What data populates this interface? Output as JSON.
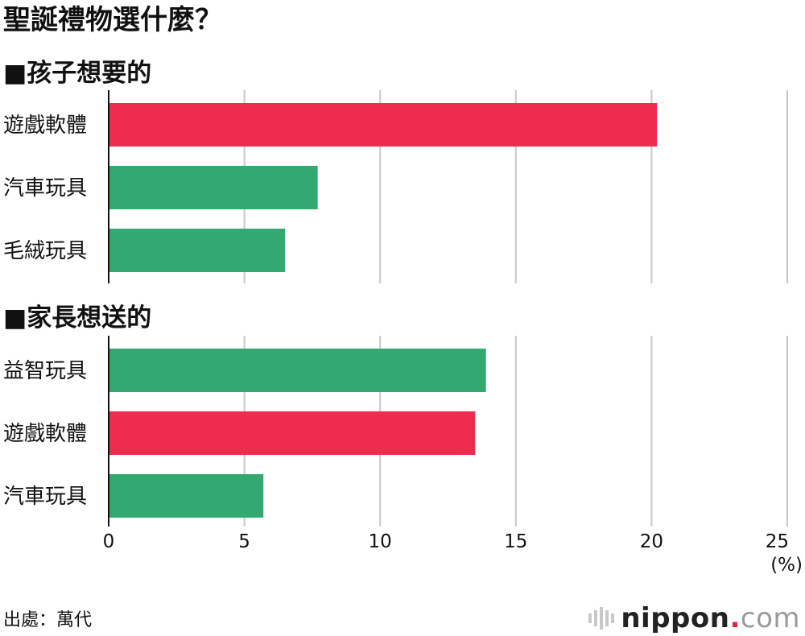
{
  "title": "聖誕禮物選什麼？",
  "chart_data": [
    {
      "type": "bar",
      "orientation": "horizontal",
      "title": "■孩子想要的",
      "categories": [
        "遊戲軟體",
        "汽車玩具",
        "毛絨玩具"
      ],
      "values": [
        20.2,
        7.7,
        6.5
      ],
      "colors": [
        "#f02b50",
        "#33a870",
        "#33a870"
      ],
      "xlim": [
        0,
        25
      ],
      "grid": true
    },
    {
      "type": "bar",
      "orientation": "horizontal",
      "title": "■家長想送的",
      "categories": [
        "益智玩具",
        "遊戲軟體",
        "汽車玩具"
      ],
      "values": [
        13.9,
        13.5,
        5.7
      ],
      "colors": [
        "#33a870",
        "#f02b50",
        "#33a870"
      ],
      "xlim": [
        0,
        25
      ],
      "grid": true
    }
  ],
  "axis": {
    "ticks": [
      "0",
      "5",
      "10",
      "15",
      "20",
      "25"
    ],
    "tick_values": [
      0,
      5,
      10,
      15,
      20,
      25
    ],
    "unit": "(%)"
  },
  "source": "出處：萬代",
  "logo": {
    "main": "nippon",
    "dot": ".",
    "suffix": "com"
  }
}
